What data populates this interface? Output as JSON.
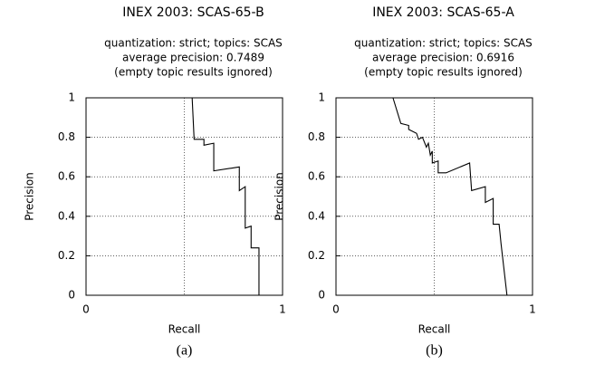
{
  "chart_data": [
    {
      "type": "line",
      "title": "INEX 2003: SCAS-65-B",
      "subtitle": [
        "quantization: strict; topics: SCAS",
        "average precision: 0.7489",
        "(empty topic results ignored)"
      ],
      "x_label": "Recall",
      "y_label": "Precision",
      "caption": "(a)",
      "xlim": [
        0,
        1
      ],
      "ylim": [
        0,
        1
      ],
      "xticks": [
        0,
        1
      ],
      "yticks": [
        0,
        0.2,
        0.4,
        0.6,
        0.8,
        1
      ],
      "x_grid": [
        0.5
      ],
      "grid": true,
      "color": "#000000",
      "series": [
        {
          "x": [
            0.54,
            0.55,
            0.6,
            0.6,
            0.65,
            0.65,
            0.78,
            0.78,
            0.81,
            0.81,
            0.84,
            0.84,
            0.88,
            0.88,
            0.92
          ],
          "values": [
            1.0,
            0.79,
            0.79,
            0.76,
            0.77,
            0.63,
            0.65,
            0.53,
            0.55,
            0.34,
            0.35,
            0.24,
            0.24,
            0.0,
            0.0
          ]
        }
      ]
    },
    {
      "type": "line",
      "title": "INEX 2003: SCAS-65-A",
      "subtitle": [
        "quantization: strict; topics: SCAS",
        "average precision: 0.6916",
        "(empty topic results ignored)"
      ],
      "x_label": "Recall",
      "y_label": "Precision",
      "caption": "(b)",
      "xlim": [
        0,
        1
      ],
      "ylim": [
        0,
        1
      ],
      "xticks": [
        0,
        1
      ],
      "yticks": [
        0,
        0.2,
        0.4,
        0.6,
        0.8,
        1
      ],
      "x_grid": [
        0.5
      ],
      "grid": true,
      "color": "#000000",
      "series": [
        {
          "x": [
            0.29,
            0.33,
            0.37,
            0.37,
            0.41,
            0.42,
            0.44,
            0.46,
            0.47,
            0.48,
            0.49,
            0.49,
            0.52,
            0.52,
            0.56,
            0.68,
            0.69,
            0.76,
            0.76,
            0.8,
            0.8,
            0.83,
            0.84,
            0.87,
            0.91
          ],
          "values": [
            1.0,
            0.87,
            0.86,
            0.84,
            0.82,
            0.79,
            0.8,
            0.75,
            0.77,
            0.71,
            0.73,
            0.67,
            0.68,
            0.62,
            0.62,
            0.67,
            0.53,
            0.55,
            0.47,
            0.49,
            0.36,
            0.36,
            0.26,
            0.0,
            0.0
          ]
        }
      ]
    }
  ]
}
